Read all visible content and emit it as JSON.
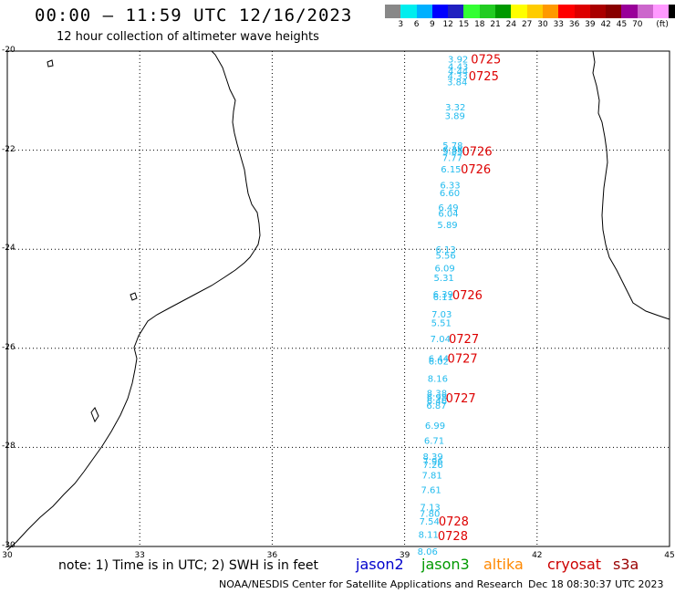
{
  "header": {
    "title": "00:00 – 11:59 UTC 12/16/2023",
    "subtitle": "12 hour collection of altimeter wave heights"
  },
  "colorbar": {
    "colors": [
      "#888888",
      "#00eeee",
      "#00b0ff",
      "#0000ff",
      "#2020c0",
      "#33ff33",
      "#22cc22",
      "#009900",
      "#ffff00",
      "#ffcc00",
      "#ff9900",
      "#ff0000",
      "#dd0000",
      "#aa0000",
      "#880000",
      "#990099",
      "#cc66cc",
      "#ff99ff",
      "#000000"
    ],
    "labels": [
      "3",
      "6",
      "9",
      "12",
      "15",
      "18",
      "21",
      "24",
      "27",
      "30",
      "33",
      "36",
      "39",
      "42",
      "45",
      "70",
      "(ft)"
    ]
  },
  "map": {
    "lon_ticks": [
      "30",
      "33",
      "36",
      "39",
      "42",
      "45"
    ],
    "lat_ticks": [
      "-20",
      "-22",
      "-24",
      "-26",
      "-28",
      "-30"
    ]
  },
  "track": {
    "color": "#22bbee",
    "points": [
      {
        "lat": -20.16,
        "lon": 39.98,
        "v": "3.92"
      },
      {
        "lat": -20.3,
        "lon": 39.98,
        "v": "4.43"
      },
      {
        "lat": -20.4,
        "lon": 39.98,
        "v": "4.44"
      },
      {
        "lat": -20.5,
        "lon": 39.97,
        "v": "4.33"
      },
      {
        "lat": -20.62,
        "lon": 39.96,
        "v": "3.84"
      },
      {
        "lat": -21.12,
        "lon": 39.92,
        "v": "3.32"
      },
      {
        "lat": -21.3,
        "lon": 39.91,
        "v": "3.89"
      },
      {
        "lat": -21.9,
        "lon": 39.86,
        "v": "5.78"
      },
      {
        "lat": -21.98,
        "lon": 39.86,
        "v": "6.38"
      },
      {
        "lat": -22.02,
        "lon": 39.86,
        "v": "5.85"
      },
      {
        "lat": -22.15,
        "lon": 39.85,
        "v": "7.77"
      },
      {
        "lat": -22.38,
        "lon": 39.82,
        "v": "6.15"
      },
      {
        "lat": -22.7,
        "lon": 39.8,
        "v": "6.33"
      },
      {
        "lat": -22.85,
        "lon": 39.79,
        "v": "6.60"
      },
      {
        "lat": -23.15,
        "lon": 39.76,
        "v": "6.49"
      },
      {
        "lat": -23.27,
        "lon": 39.76,
        "v": "6.04"
      },
      {
        "lat": -23.5,
        "lon": 39.74,
        "v": "5.89"
      },
      {
        "lat": -24.0,
        "lon": 39.7,
        "v": "6.13"
      },
      {
        "lat": -24.12,
        "lon": 39.7,
        "v": "5.56"
      },
      {
        "lat": -24.37,
        "lon": 39.68,
        "v": "6.09"
      },
      {
        "lat": -24.57,
        "lon": 39.66,
        "v": "5.31"
      },
      {
        "lat": -24.9,
        "lon": 39.64,
        "v": "6.39"
      },
      {
        "lat": -24.95,
        "lon": 39.64,
        "v": "6.11"
      },
      {
        "lat": -25.3,
        "lon": 39.61,
        "v": "7.03"
      },
      {
        "lat": -25.48,
        "lon": 39.6,
        "v": "5.51"
      },
      {
        "lat": -25.8,
        "lon": 39.58,
        "v": "7.04"
      },
      {
        "lat": -26.2,
        "lon": 39.54,
        "v": "6.44"
      },
      {
        "lat": -26.25,
        "lon": 39.54,
        "v": "6.02"
      },
      {
        "lat": -26.6,
        "lon": 39.52,
        "v": "8.16"
      },
      {
        "lat": -26.9,
        "lon": 39.5,
        "v": "8.38"
      },
      {
        "lat": -26.98,
        "lon": 39.5,
        "v": "6.98"
      },
      {
        "lat": -27.05,
        "lon": 39.5,
        "v": "6.46"
      },
      {
        "lat": -27.15,
        "lon": 39.49,
        "v": "6.87"
      },
      {
        "lat": -27.55,
        "lon": 39.46,
        "v": "6.99"
      },
      {
        "lat": -27.85,
        "lon": 39.44,
        "v": "6.71"
      },
      {
        "lat": -28.18,
        "lon": 39.41,
        "v": "8.39"
      },
      {
        "lat": -28.27,
        "lon": 39.41,
        "v": "7.96"
      },
      {
        "lat": -28.34,
        "lon": 39.41,
        "v": "7.26"
      },
      {
        "lat": -28.55,
        "lon": 39.39,
        "v": "7.81"
      },
      {
        "lat": -28.85,
        "lon": 39.37,
        "v": "7.61"
      },
      {
        "lat": -29.2,
        "lon": 39.35,
        "v": "7.13"
      },
      {
        "lat": -29.33,
        "lon": 39.34,
        "v": "7.80"
      },
      {
        "lat": -29.48,
        "lon": 39.33,
        "v": "7.54"
      },
      {
        "lat": -29.75,
        "lon": 39.31,
        "v": "8.11"
      },
      {
        "lat": -30.09,
        "lon": 39.29,
        "v": "8.06"
      }
    ],
    "time_labels": [
      {
        "lat": -20.16,
        "lon": 40.5,
        "v": "0725"
      },
      {
        "lat": -20.5,
        "lon": 40.45,
        "v": "0725"
      },
      {
        "lat": -22.02,
        "lon": 40.3,
        "v": "0726"
      },
      {
        "lat": -22.38,
        "lon": 40.27,
        "v": "0726"
      },
      {
        "lat": -24.92,
        "lon": 40.08,
        "v": "0726"
      },
      {
        "lat": -25.8,
        "lon": 40.0,
        "v": "0727"
      },
      {
        "lat": -26.2,
        "lon": 39.97,
        "v": "0727"
      },
      {
        "lat": -27.0,
        "lon": 39.93,
        "v": "0727"
      },
      {
        "lat": -29.48,
        "lon": 39.77,
        "v": "0728"
      },
      {
        "lat": -29.78,
        "lon": 39.75,
        "v": "0728"
      }
    ],
    "time_color": "#dd0000"
  },
  "footer": {
    "note": "note: 1) Time is in UTC; 2) SWH is in feet",
    "satellites": [
      {
        "name": "jason2",
        "color": "#0000cc"
      },
      {
        "name": "jason3",
        "color": "#009900"
      },
      {
        "name": "altika",
        "color": "#ff8800"
      },
      {
        "name": "cryosat",
        "color": "#cc0000"
      },
      {
        "name": "s3a",
        "color": "#990000"
      }
    ],
    "credit": "NOAA/NESDIS Center for Satellite Applications and Research",
    "timestamp": "Dec 18 08:30:37 UTC 2023"
  }
}
